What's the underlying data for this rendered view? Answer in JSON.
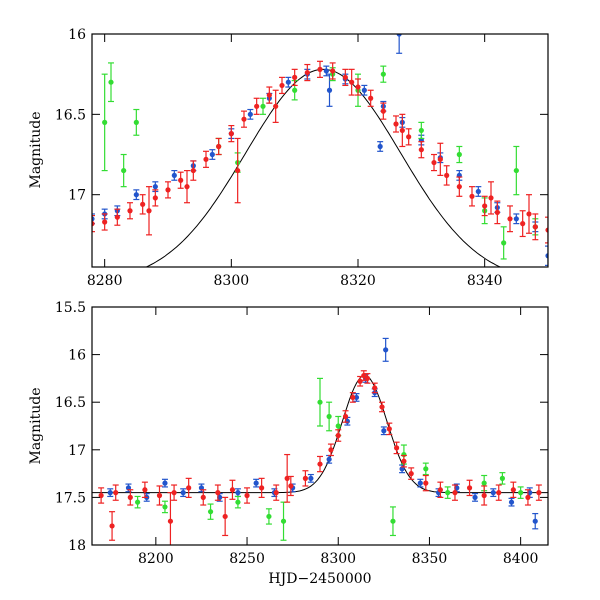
{
  "chart_data": [
    {
      "type": "scatter",
      "title": "",
      "xlabel": "",
      "ylabel": "Magnitude",
      "xlim": [
        8278,
        8350
      ],
      "ylim": [
        17.45,
        16.0
      ],
      "y_inverted": true,
      "x_ticks": [
        "8280",
        "8300",
        "8320",
        "8340"
      ],
      "y_ticks": [
        "16",
        "16.5",
        "17"
      ],
      "x_tick_values": [
        8280,
        8300,
        8320,
        8340
      ],
      "y_tick_values": [
        16,
        16.5,
        17
      ],
      "grid": false,
      "model_curve": {
        "peak_time": 8314.5,
        "baseline_mag": 17.55,
        "peak_mag": 16.22,
        "width_days": 14
      },
      "series": [
        {
          "color": "#2255cc",
          "x": [
            8278,
            8280,
            8282,
            8285,
            8288,
            8291,
            8294,
            8297,
            8300,
            8303,
            8306,
            8309,
            8312,
            8315,
            8318,
            8321,
            8324,
            8327,
            8330,
            8333,
            8336,
            8339,
            8342,
            8345,
            8348,
            8350,
            8315.5,
            8326.5,
            8323.5
          ],
          "y": [
            17.15,
            17.12,
            17.1,
            17.0,
            16.95,
            16.88,
            16.82,
            16.75,
            16.62,
            16.5,
            16.4,
            16.3,
            16.25,
            16.23,
            16.28,
            16.35,
            16.45,
            16.55,
            16.66,
            16.77,
            16.88,
            16.98,
            17.08,
            17.15,
            17.2,
            17.38,
            16.35,
            16.0,
            16.7
          ],
          "err": [
            0.03,
            0.03,
            0.03,
            0.03,
            0.03,
            0.03,
            0.03,
            0.03,
            0.03,
            0.03,
            0.03,
            0.03,
            0.03,
            0.03,
            0.03,
            0.03,
            0.03,
            0.03,
            0.03,
            0.03,
            0.03,
            0.03,
            0.03,
            0.03,
            0.03,
            0.06,
            0.1,
            0.12,
            0.03
          ]
        },
        {
          "color": "#33dd33",
          "x": [
            8280,
            8281,
            8283,
            8285,
            8298,
            8301,
            8305,
            8310,
            8316,
            8320,
            8324,
            8330,
            8336,
            8340,
            8343,
            8345,
            8348
          ],
          "y": [
            16.55,
            16.3,
            16.85,
            16.55,
            16.7,
            16.8,
            16.45,
            16.35,
            16.25,
            16.35,
            16.25,
            16.6,
            16.75,
            17.1,
            17.3,
            16.85,
            17.2
          ],
          "err": [
            0.3,
            0.12,
            0.1,
            0.08,
            0.05,
            0.06,
            0.05,
            0.06,
            0.04,
            0.1,
            0.05,
            0.05,
            0.05,
            0.08,
            0.1,
            0.15,
            0.05
          ]
        },
        {
          "color": "#ee2222",
          "x": [
            8278,
            8280,
            8282,
            8284,
            8286,
            8288,
            8290,
            8292,
            8294,
            8296,
            8298,
            8300,
            8302,
            8304,
            8306,
            8308,
            8310,
            8312,
            8314,
            8316,
            8318,
            8320,
            8322,
            8324,
            8326,
            8328,
            8330,
            8332,
            8334,
            8336,
            8338,
            8340,
            8342,
            8344,
            8346,
            8348,
            8350,
            8287,
            8293,
            8301,
            8307,
            8319,
            8327,
            8333,
            8341,
            8347
          ],
          "y": [
            17.18,
            17.17,
            17.14,
            17.1,
            17.06,
            17.02,
            16.97,
            16.91,
            16.85,
            16.78,
            16.7,
            16.62,
            16.53,
            16.45,
            16.38,
            16.32,
            16.27,
            16.24,
            16.22,
            16.23,
            16.27,
            16.33,
            16.4,
            16.48,
            16.56,
            16.64,
            16.72,
            16.8,
            16.88,
            16.95,
            17.01,
            17.07,
            17.11,
            17.15,
            17.18,
            17.2,
            17.22,
            17.1,
            16.95,
            16.85,
            16.45,
            16.3,
            16.6,
            16.78,
            17.02,
            17.12
          ],
          "err": [
            0.05,
            0.05,
            0.05,
            0.05,
            0.06,
            0.05,
            0.05,
            0.05,
            0.06,
            0.05,
            0.05,
            0.05,
            0.05,
            0.05,
            0.05,
            0.05,
            0.05,
            0.05,
            0.05,
            0.05,
            0.05,
            0.05,
            0.05,
            0.05,
            0.05,
            0.05,
            0.05,
            0.05,
            0.06,
            0.06,
            0.06,
            0.06,
            0.07,
            0.08,
            0.08,
            0.08,
            0.08,
            0.15,
            0.1,
            0.2,
            0.1,
            0.08,
            0.1,
            0.1,
            0.1,
            0.12
          ]
        }
      ]
    },
    {
      "type": "scatter",
      "title": "",
      "xlabel": "HJD−2450000",
      "ylabel": "Magnitude",
      "xlim": [
        8165,
        8415
      ],
      "ylim": [
        18.0,
        15.5
      ],
      "y_inverted": true,
      "x_ticks": [
        "8200",
        "8250",
        "8300",
        "8350",
        "8400"
      ],
      "y_ticks": [
        "15.5",
        "16",
        "16.5",
        "17",
        "17.5",
        "18"
      ],
      "x_tick_values": [
        8200,
        8250,
        8300,
        8350,
        8400
      ],
      "y_tick_values": [
        15.5,
        16,
        16.5,
        17,
        17.5,
        18
      ],
      "grid": false,
      "model_curve": {
        "peak_time": 8314.5,
        "baseline_mag": 17.45,
        "peak_mag": 16.22,
        "width_days": 14
      },
      "series": [
        {
          "color": "#2255cc",
          "x": [
            8175,
            8185,
            8195,
            8205,
            8215,
            8225,
            8235,
            8245,
            8255,
            8265,
            8275,
            8285,
            8295,
            8305,
            8310,
            8315,
            8320,
            8325,
            8326,
            8335,
            8345,
            8355,
            8365,
            8375,
            8385,
            8395,
            8405,
            8408
          ],
          "y": [
            17.45,
            17.4,
            17.5,
            17.35,
            17.45,
            17.4,
            17.5,
            17.45,
            17.35,
            17.45,
            17.4,
            17.3,
            17.1,
            16.7,
            16.45,
            16.25,
            16.4,
            16.8,
            15.95,
            17.2,
            17.35,
            17.45,
            17.4,
            17.5,
            17.45,
            17.55,
            17.45,
            17.75
          ],
          "err": [
            0.04,
            0.04,
            0.04,
            0.04,
            0.04,
            0.04,
            0.04,
            0.04,
            0.04,
            0.04,
            0.04,
            0.04,
            0.04,
            0.04,
            0.04,
            0.04,
            0.04,
            0.04,
            0.12,
            0.04,
            0.04,
            0.04,
            0.04,
            0.04,
            0.04,
            0.04,
            0.05,
            0.08
          ]
        },
        {
          "color": "#33dd33",
          "x": [
            8190,
            8205,
            8230,
            8245,
            8262,
            8270,
            8290,
            8295,
            8300,
            8330,
            8336,
            8348,
            8360,
            8380,
            8390,
            8400
          ],
          "y": [
            17.55,
            17.6,
            17.65,
            17.55,
            17.7,
            17.75,
            16.5,
            16.65,
            16.75,
            17.75,
            17.05,
            17.2,
            17.45,
            17.35,
            17.3,
            17.45
          ],
          "err": [
            0.06,
            0.06,
            0.08,
            0.06,
            0.08,
            0.2,
            0.25,
            0.15,
            0.1,
            0.15,
            0.1,
            0.06,
            0.06,
            0.08,
            0.06,
            0.06
          ]
        },
        {
          "color": "#ee2222",
          "x": [
            8170,
            8178,
            8186,
            8194,
            8202,
            8210,
            8218,
            8226,
            8234,
            8242,
            8250,
            8258,
            8266,
            8274,
            8282,
            8290,
            8296,
            8300,
            8304,
            8308,
            8312,
            8314,
            8316,
            8320,
            8324,
            8328,
            8332,
            8336,
            8340,
            8348,
            8356,
            8364,
            8372,
            8380,
            8388,
            8396,
            8404,
            8410,
            8176,
            8208,
            8238,
            8272
          ],
          "y": [
            17.48,
            17.45,
            17.5,
            17.42,
            17.48,
            17.45,
            17.4,
            17.5,
            17.45,
            17.42,
            17.48,
            17.4,
            17.45,
            17.38,
            17.3,
            17.15,
            17.0,
            16.85,
            16.65,
            16.45,
            16.28,
            16.22,
            16.25,
            16.35,
            16.55,
            16.78,
            16.98,
            17.12,
            17.25,
            17.35,
            17.42,
            17.45,
            17.4,
            17.48,
            17.45,
            17.42,
            17.5,
            17.45,
            17.8,
            17.75,
            17.7,
            17.3
          ],
          "err": [
            0.08,
            0.08,
            0.08,
            0.08,
            0.1,
            0.08,
            0.1,
            0.08,
            0.08,
            0.1,
            0.08,
            0.1,
            0.08,
            0.1,
            0.08,
            0.08,
            0.06,
            0.06,
            0.06,
            0.05,
            0.05,
            0.05,
            0.05,
            0.05,
            0.05,
            0.06,
            0.06,
            0.06,
            0.06,
            0.08,
            0.08,
            0.08,
            0.08,
            0.1,
            0.08,
            0.08,
            0.08,
            0.08,
            0.15,
            0.3,
            0.2,
            0.25
          ]
        }
      ]
    }
  ]
}
